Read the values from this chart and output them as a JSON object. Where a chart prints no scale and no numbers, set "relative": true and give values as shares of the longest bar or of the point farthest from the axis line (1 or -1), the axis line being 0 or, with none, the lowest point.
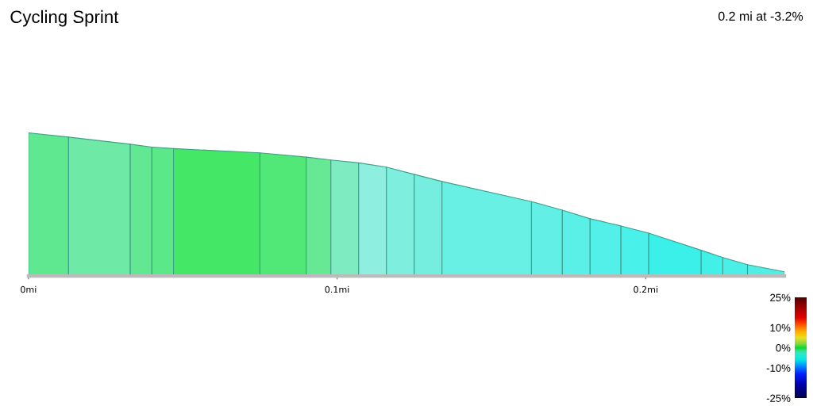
{
  "chart_data": {
    "type": "area",
    "title": "Cycling Sprint",
    "subtitle": "0.2 mi at -3.2%",
    "relative": true,
    "series": [
      {
        "color": "#60e890",
        "x": [
          0,
          0.013
        ],
        "values": [
          1.0,
          0.97
        ]
      },
      {
        "color": "#6eeaa6",
        "x": [
          0.013,
          0.033
        ],
        "values": [
          0.97,
          0.92
        ]
      },
      {
        "color": "#62e892",
        "x": [
          0.033,
          0.04
        ],
        "values": [
          0.92,
          0.9
        ]
      },
      {
        "color": "#5ae888",
        "x": [
          0.04,
          0.047
        ],
        "values": [
          0.9,
          0.89
        ]
      },
      {
        "color": "#44e866",
        "x": [
          0.047,
          0.075
        ],
        "values": [
          0.89,
          0.86
        ]
      },
      {
        "color": "#52e878",
        "x": [
          0.075,
          0.09
        ],
        "values": [
          0.86,
          0.83
        ]
      },
      {
        "color": "#66e894",
        "x": [
          0.09,
          0.098
        ],
        "values": [
          0.83,
          0.81
        ]
      },
      {
        "color": "#7eecc0",
        "x": [
          0.098,
          0.107
        ],
        "values": [
          0.81,
          0.79
        ]
      },
      {
        "color": "#8eeedf",
        "x": [
          0.107,
          0.116
        ],
        "values": [
          0.79,
          0.76
        ]
      },
      {
        "color": "#7eeede",
        "x": [
          0.116,
          0.125
        ],
        "values": [
          0.76,
          0.71
        ]
      },
      {
        "color": "#76eedf",
        "x": [
          0.125,
          0.134
        ],
        "values": [
          0.71,
          0.66
        ]
      },
      {
        "color": "#68f0e4",
        "x": [
          0.134,
          0.163
        ],
        "values": [
          0.66,
          0.52
        ]
      },
      {
        "color": "#62f0e6",
        "x": [
          0.163,
          0.173
        ],
        "values": [
          0.52,
          0.46
        ]
      },
      {
        "color": "#5af0e8",
        "x": [
          0.173,
          0.182
        ],
        "values": [
          0.46,
          0.4
        ]
      },
      {
        "color": "#52f0e8",
        "x": [
          0.182,
          0.192
        ],
        "values": [
          0.4,
          0.35
        ]
      },
      {
        "color": "#4af0ea",
        "x": [
          0.192,
          0.201
        ],
        "values": [
          0.35,
          0.3
        ]
      },
      {
        "color": "#3cf0ea",
        "x": [
          0.201,
          0.218
        ],
        "values": [
          0.3,
          0.18
        ]
      },
      {
        "color": "#42f0e8",
        "x": [
          0.218,
          0.225
        ],
        "values": [
          0.18,
          0.13
        ]
      },
      {
        "color": "#4af0e8",
        "x": [
          0.225,
          0.233
        ],
        "values": [
          0.13,
          0.08
        ]
      },
      {
        "color": "#52eee6",
        "x": [
          0.233,
          0.245
        ],
        "values": [
          0.08,
          0.03
        ]
      }
    ],
    "clim": [
      -25,
      25
    ],
    "cticks": [
      {
        "value": 25,
        "label": "25%"
      },
      {
        "value": 10,
        "label": "10%"
      },
      {
        "value": 0,
        "label": "0%"
      },
      {
        "value": -10,
        "label": "-10%"
      },
      {
        "value": -25,
        "label": "-25%"
      }
    ],
    "xlim": [
      0,
      0.245
    ],
    "xticks": [
      {
        "value": 0,
        "label": "0mi"
      },
      {
        "value": 0.1,
        "label": "0.1mi"
      },
      {
        "value": 0.2,
        "label": "0.2mi"
      }
    ]
  }
}
